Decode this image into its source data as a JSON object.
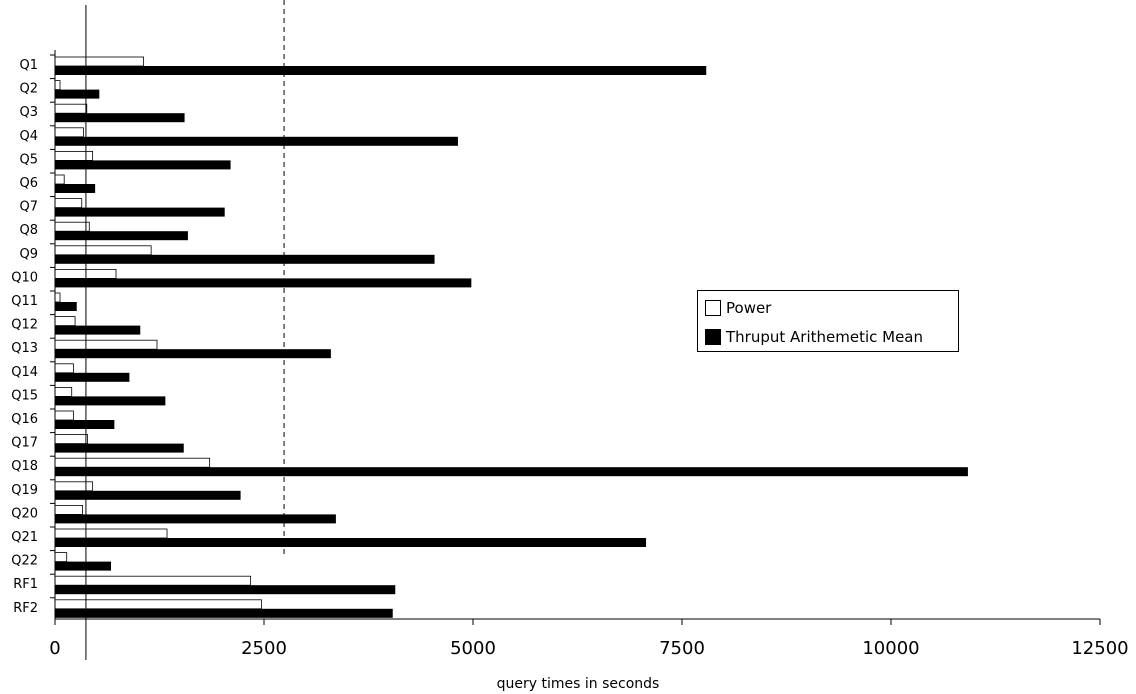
{
  "chart_data": {
    "type": "bar",
    "orientation": "horizontal",
    "categories": [
      "Q1",
      "Q2",
      "Q3",
      "Q4",
      "Q5",
      "Q6",
      "Q7",
      "Q8",
      "Q9",
      "Q10",
      "Q11",
      "Q12",
      "Q13",
      "Q14",
      "Q15",
      "Q16",
      "Q17",
      "Q18",
      "Q19",
      "Q20",
      "Q21",
      "Q22",
      "RF1",
      "RF2"
    ],
    "series": [
      {
        "name": "Power",
        "color": "#ffffff",
        "values": [
          1060,
          60,
          380,
          340,
          450,
          110,
          320,
          410,
          1150,
          730,
          60,
          240,
          1220,
          220,
          200,
          220,
          390,
          1850,
          450,
          330,
          1340,
          140,
          2340,
          2470
        ]
      },
      {
        "name": "Thruput Arithemetic Mean",
        "color": "#000000",
        "values": [
          7790,
          530,
          1550,
          4820,
          2100,
          480,
          2030,
          1590,
          4540,
          4980,
          260,
          1020,
          3300,
          890,
          1320,
          710,
          1540,
          10920,
          2220,
          3360,
          7070,
          670,
          4070,
          4040
        ]
      }
    ],
    "xlabel": "query times in seconds",
    "ylabel": "",
    "title": "",
    "xlim": [
      0,
      12500
    ],
    "xticks": [
      0,
      2500,
      5000,
      7500,
      10000,
      12500
    ],
    "xtick_labels": [
      "0",
      "2500",
      "5000",
      "7500",
      "10000",
      "12500"
    ],
    "reference_lines": [
      {
        "style": "solid",
        "x": 370
      },
      {
        "style": "dashed",
        "x": 2740
      }
    ],
    "grid": false,
    "legend_position": "center-right"
  }
}
